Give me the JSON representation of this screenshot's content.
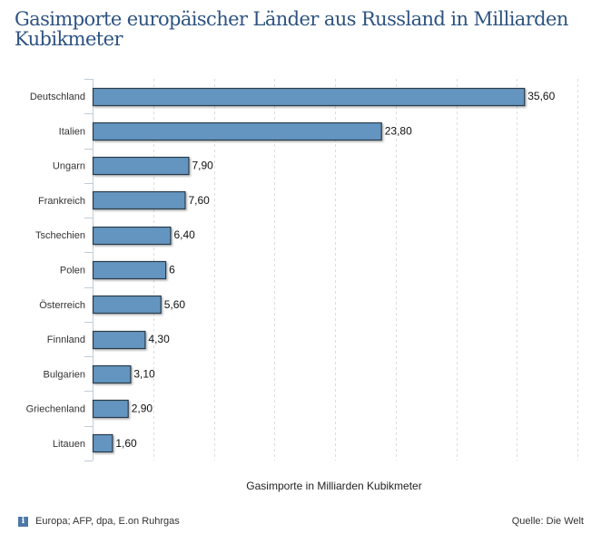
{
  "title": "Gasimporte europäischer Länder aus Russland in Milliarden Kubikmeter",
  "footer": {
    "info_icon": "info-icon",
    "info_icon_glyph": "i",
    "source_note": "Europa; AFP, dpa, E.on Ruhrgas",
    "credit": "Quelle: Die Welt"
  },
  "colors": {
    "bar_fill": "#6495c0",
    "bar_stroke": "#2b3a4a",
    "title": "#2d5382",
    "grid": "#dddddd",
    "axis": "#c0ccd8"
  },
  "chart_data": {
    "type": "bar",
    "orientation": "horizontal",
    "title": "Gasimporte europäischer Länder aus Russland in Milliarden Kubikmeter",
    "xlabel": "Gasimporte in Milliarden Kubikmeter",
    "ylabel": "",
    "categories": [
      "Deutschland",
      "Italien",
      "Ungarn",
      "Frankreich",
      "Tschechien",
      "Polen",
      "Österreich",
      "Finnland",
      "Bulgarien",
      "Griechenland",
      "Litauen"
    ],
    "values": [
      35.6,
      23.8,
      7.9,
      7.6,
      6.4,
      6.0,
      5.6,
      4.3,
      3.1,
      2.9,
      1.6
    ],
    "value_labels": [
      "35,60",
      "23,80",
      "7,90",
      "7,60",
      "6,40",
      "6",
      "5,60",
      "4,30",
      "3,10",
      "2,90",
      "1,60"
    ],
    "xlim": [
      0,
      40
    ],
    "x_gridlines": [
      5,
      10,
      15,
      20,
      25,
      30,
      35,
      40
    ],
    "x_tick_labels_visible": false,
    "grid": true,
    "legend": "none"
  }
}
